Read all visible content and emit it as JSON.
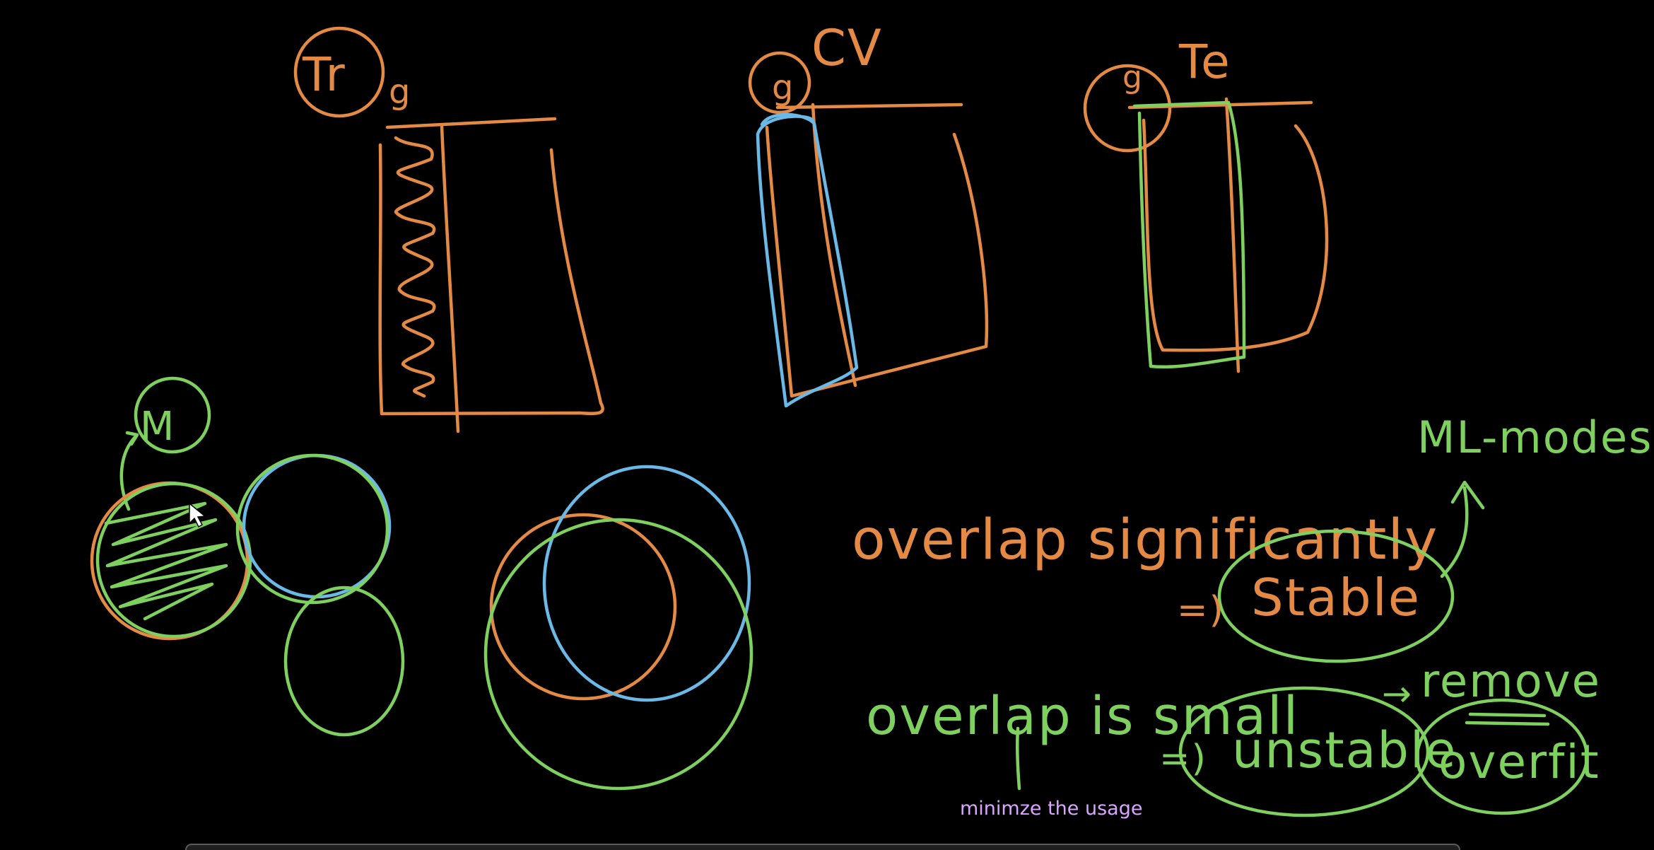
{
  "caption": "minimze the usage",
  "labels": {
    "train_tag": "Tr",
    "train_sub": "g",
    "cv_circle": "g",
    "cv_tag": "CV",
    "test_circle": "g",
    "test_tag": "Te",
    "model_tag": "M",
    "overlap_significantly": "overlap significantly",
    "stable": "Stable",
    "ml_models": "ML-modes",
    "overlap_small": "overlap is small",
    "unstable": "unstable",
    "remove": "remove",
    "overfit": "overfit",
    "implies_stable": "=)",
    "implies_unstable": "=)",
    "arrow_remove": "→"
  },
  "colors": {
    "background": "#000000",
    "orange_ink": "#e58a45",
    "green_ink": "#7fd15f",
    "blue_ink": "#6ab9e6",
    "caption_text": "#d9a5ff"
  }
}
